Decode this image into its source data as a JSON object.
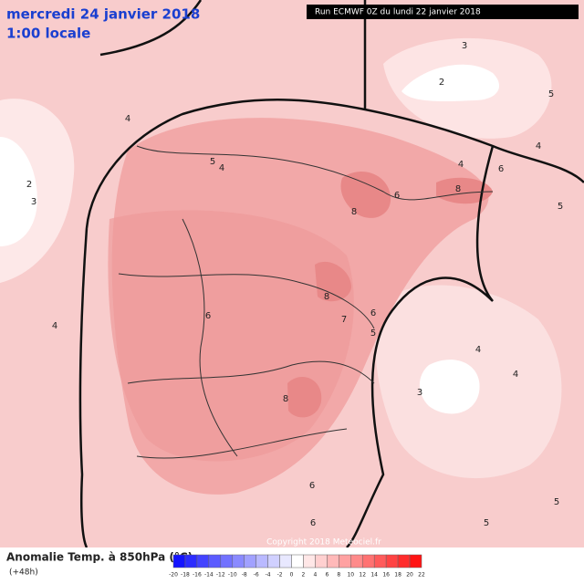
{
  "header": {
    "date": "mercredi 24 janvier 2018",
    "time": "1:00 locale",
    "run": "Run ECMWF 0Z du lundi 22 janvier 2018"
  },
  "map": {
    "contour_labels": [
      "4",
      "5",
      "4",
      "2",
      "3",
      "6",
      "8",
      "8",
      "6",
      "4",
      "3",
      "2",
      "5",
      "4",
      "5",
      "8",
      "6",
      "7",
      "6",
      "5",
      "4",
      "3",
      "4",
      "4",
      "8",
      "6",
      "6",
      "5",
      "5"
    ],
    "copyright": "Copyright 2018 Meteociel.fr"
  },
  "legend": {
    "title": "Anomalie Temp. à 850hPa (°C)",
    "subtitle": "(+48h)",
    "scale": [
      -20,
      -18,
      -16,
      -14,
      -12,
      -10,
      -8,
      -6,
      -4,
      -2,
      0,
      2,
      4,
      6,
      8,
      10,
      12,
      14,
      16,
      18,
      20,
      22
    ]
  }
}
